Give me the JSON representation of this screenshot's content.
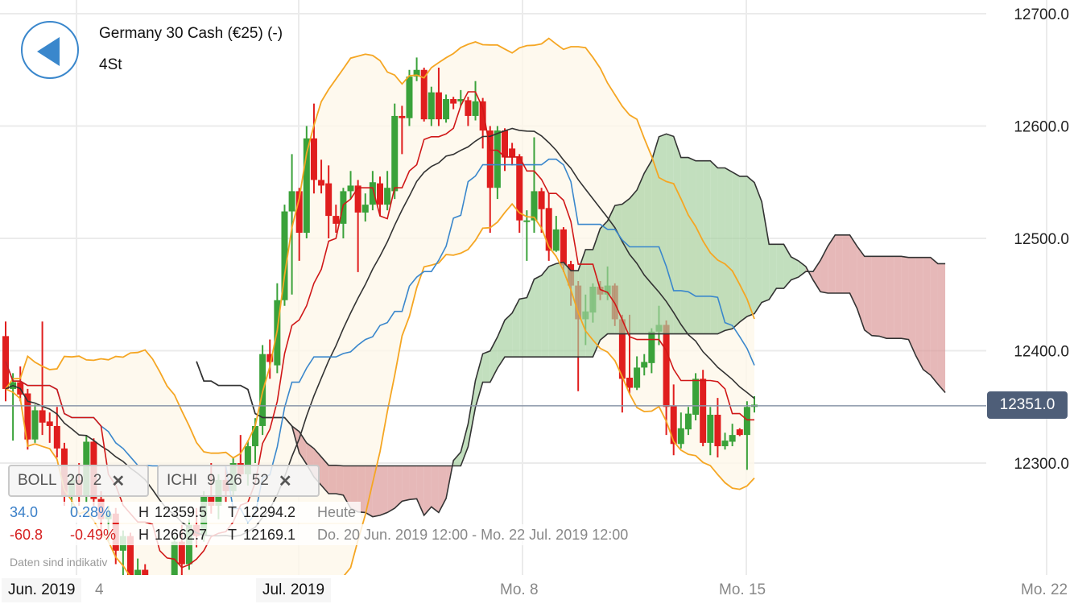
{
  "header": {
    "title": "Germany 30 Cash (€25) (-)",
    "period": "4St",
    "back_icon": "back-arrow-icon"
  },
  "indicators": [
    {
      "name": "BOLL",
      "params": [
        "20",
        "2"
      ],
      "remove": "✕"
    },
    {
      "name": "ICHI",
      "params": [
        "9",
        "26",
        "52"
      ],
      "remove": "✕"
    }
  ],
  "info": {
    "today": {
      "change": "34.0",
      "change_pct": "0.28%",
      "high_label": "H",
      "high": "12359.5",
      "low_label": "T",
      "low": "12294.2",
      "range": "Heute"
    },
    "period": {
      "change": "-60.8",
      "change_pct": "-0.49%",
      "high_label": "H",
      "high": "12662.7",
      "low_label": "T",
      "low": "12169.1",
      "range": "Do. 20 Jun. 2019 12:00 - Mo. 22 Jul. 2019 12:00"
    }
  },
  "note": "Daten sind indikativ",
  "last_price": "12351.0",
  "colors": {
    "up": "#3aa23a",
    "down": "#e01e1e",
    "boll_band": "#f5a623",
    "boll_mid": "#333333",
    "tenkan": "#d01818",
    "kijun": "#3a87cc",
    "cloud_up": "#a8d1a3",
    "cloud_down": "#dc9a9a",
    "last_price_bg": "#4e5e78",
    "accent": "#3a87cc"
  },
  "chart_data": {
    "type": "candlestick",
    "ylim": [
      12210,
      12715
    ],
    "y_ticks": [
      "12300.0",
      "12400.0",
      "12500.0",
      "12600.0",
      "12700.0"
    ],
    "y_tick_values": [
      12300,
      12400,
      12500,
      12600,
      12700
    ],
    "x_labels": [
      "Jun. 2019",
      "4",
      "Jul. 2019",
      "Mo. 8",
      "Mo. 15",
      "Mo. 22"
    ],
    "grid": true,
    "bollinger": {
      "period": 20,
      "stddev": 2
    },
    "ichimoku": {
      "tenkan": 9,
      "kijun": 26,
      "senkou": 52
    },
    "candles": [
      [
        12413,
        12426,
        12355,
        12366
      ],
      [
        12366,
        12380,
        12320,
        12372
      ],
      [
        12372,
        12386,
        12355,
        12361
      ],
      [
        12362,
        12366,
        12312,
        12321
      ],
      [
        12321,
        12352,
        12318,
        12347
      ],
      [
        12347,
        12426,
        12325,
        12336
      ],
      [
        12337,
        12345,
        12318,
        12333
      ],
      [
        12333,
        12350,
        12305,
        12313
      ],
      [
        12313,
        12318,
        12262,
        12271
      ],
      [
        12271,
        12290,
        12255,
        12285
      ],
      [
        12285,
        12300,
        12262,
        12270
      ],
      [
        12270,
        12325,
        12265,
        12319
      ],
      [
        12319,
        12322,
        12262,
        12268
      ],
      [
        12268,
        12275,
        12240,
        12250
      ],
      [
        12250,
        12262,
        12230,
        12255
      ],
      [
        12255,
        12260,
        12210,
        12222
      ],
      [
        12222,
        12240,
        12200,
        12235
      ],
      [
        12235,
        12238,
        12185,
        12195
      ],
      [
        12195,
        12215,
        12170,
        12205
      ],
      [
        12205,
        12210,
        12175,
        12180
      ],
      [
        12180,
        12195,
        12169,
        12190
      ],
      [
        12190,
        12198,
        12175,
        12185
      ],
      [
        12185,
        12200,
        12178,
        12195
      ],
      [
        12195,
        12235,
        12190,
        12230
      ],
      [
        12230,
        12245,
        12200,
        12210
      ],
      [
        12210,
        12250,
        12205,
        12245
      ],
      [
        12245,
        12260,
        12225,
        12235
      ],
      [
        12235,
        12275,
        12230,
        12270
      ],
      [
        12270,
        12300,
        12255,
        12262
      ],
      [
        12262,
        12290,
        12250,
        12285
      ],
      [
        12285,
        12297,
        12265,
        12275
      ],
      [
        12275,
        12305,
        12270,
        12300
      ],
      [
        12300,
        12325,
        12285,
        12290
      ],
      [
        12290,
        12320,
        12280,
        12315
      ],
      [
        12315,
        12340,
        12300,
        12333
      ],
      [
        12333,
        12405,
        12325,
        12397
      ],
      [
        12397,
        12410,
        12375,
        12390
      ],
      [
        12387,
        12460,
        12380,
        12445
      ],
      [
        12445,
        12530,
        12440,
        12524
      ],
      [
        12524,
        12575,
        12450,
        12542
      ],
      [
        12542,
        12545,
        12480,
        12505
      ],
      [
        12505,
        12600,
        12500,
        12589
      ],
      [
        12589,
        12620,
        12540,
        12552
      ],
      [
        12552,
        12570,
        12540,
        12547
      ],
      [
        12549,
        12565,
        12500,
        12520
      ],
      [
        12520,
        12530,
        12505,
        12513
      ],
      [
        12513,
        12545,
        12500,
        12542
      ],
      [
        12542,
        12560,
        12535,
        12547
      ],
      [
        12547,
        12552,
        12470,
        12523
      ],
      [
        12523,
        12540,
        12515,
        12530
      ],
      [
        12530,
        12560,
        12525,
        12550
      ],
      [
        12549,
        12555,
        12520,
        12530
      ],
      [
        12530,
        12560,
        12525,
        12545
      ],
      [
        12542,
        12620,
        12535,
        12609
      ],
      [
        12609,
        12618,
        12575,
        12607
      ],
      [
        12607,
        12650,
        12600,
        12644
      ],
      [
        12644,
        12661,
        12640,
        12650
      ],
      [
        12650,
        12652,
        12604,
        12606
      ],
      [
        12606,
        12635,
        12600,
        12630
      ],
      [
        12630,
        12652,
        12600,
        12606
      ],
      [
        12606,
        12628,
        12603,
        12624
      ],
      [
        12624,
        12626,
        12615,
        12620
      ],
      [
        12622,
        12632,
        12618,
        12624
      ],
      [
        12623,
        12626,
        12600,
        12609
      ],
      [
        12609,
        12640,
        12605,
        12622
      ],
      [
        12622,
        12625,
        12580,
        12596
      ],
      [
        12596,
        12600,
        12505,
        12545
      ],
      [
        12545,
        12600,
        12535,
        12596
      ],
      [
        12596,
        12598,
        12560,
        12572
      ],
      [
        12580,
        12585,
        12565,
        12572
      ],
      [
        12573,
        12575,
        12505,
        12516
      ],
      [
        12516,
        12525,
        12480,
        12516
      ],
      [
        12516,
        12590,
        12505,
        12542
      ],
      [
        12542,
        12545,
        12505,
        12526
      ],
      [
        12527,
        12540,
        12480,
        12489
      ],
      [
        12489,
        12520,
        12488,
        12508
      ],
      [
        12508,
        12510,
        12470,
        12476
      ],
      [
        12477,
        12480,
        12440,
        12458
      ],
      [
        12458,
        12462,
        12364,
        12428
      ],
      [
        12428,
        12450,
        12405,
        12435
      ],
      [
        12434,
        12460,
        12425,
        12457
      ],
      [
        12457,
        12462,
        12445,
        12450
      ],
      [
        12450,
        12475,
        12445,
        12458
      ],
      [
        12458,
        12460,
        12422,
        12428
      ],
      [
        12428,
        12432,
        12345,
        12375
      ],
      [
        12376,
        12432,
        12362,
        12367
      ],
      [
        12367,
        12395,
        12365,
        12385
      ],
      [
        12385,
        12397,
        12378,
        12390
      ],
      [
        12389,
        12420,
        12380,
        12417
      ],
      [
        12417,
        12440,
        12405,
        12423
      ],
      [
        12423,
        12427,
        12325,
        12350
      ],
      [
        12351,
        12370,
        12307,
        12317
      ],
      [
        12317,
        12345,
        12313,
        12331
      ],
      [
        12330,
        12350,
        12325,
        12344
      ],
      [
        12343,
        12380,
        12338,
        12375
      ],
      [
        12375,
        12383,
        12315,
        12318
      ],
      [
        12318,
        12350,
        12307,
        12343
      ],
      [
        12343,
        12358,
        12305,
        12315
      ],
      [
        12315,
        12327,
        12312,
        12320
      ],
      [
        12319,
        12335,
        12315,
        12325
      ],
      [
        12330,
        12331,
        12324,
        12325
      ],
      [
        12325,
        12355,
        12294,
        12350
      ],
      [
        12350,
        12359.5,
        12345,
        12352
      ]
    ]
  }
}
